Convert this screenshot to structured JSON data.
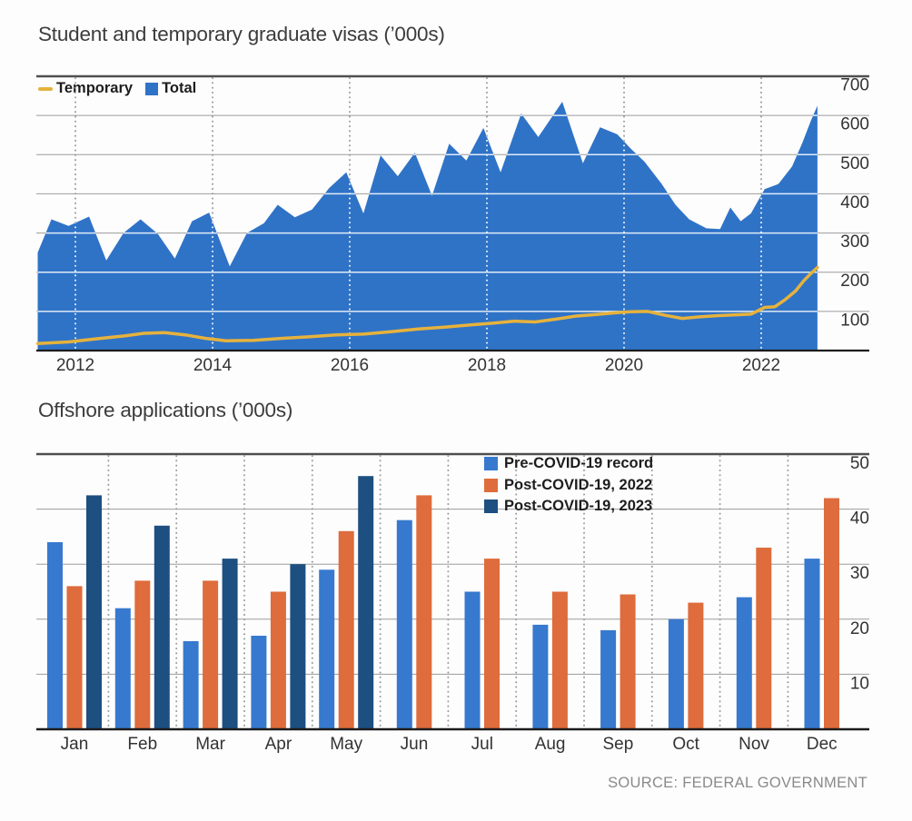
{
  "source_label": "SOURCE: FEDERAL GOVERNMENT",
  "colors": {
    "grid_gray": "#9b9b9b",
    "chart_top_border": "#4f4f4f",
    "axis_dark": "#1c1c1c",
    "tick_label": "#333333",
    "white_grid": "#ffffff"
  },
  "chart_data": [
    {
      "type": "area",
      "title": "Student and temporary graduate visas (’000s)",
      "xlabel": "",
      "ylabel": "",
      "xlim": [
        2011.45,
        2022.82
      ],
      "ylim": [
        0,
        700
      ],
      "x_ticks": [
        2012,
        2014,
        2016,
        2018,
        2020,
        2022
      ],
      "y_ticks": [
        700,
        600,
        500,
        400,
        300,
        200,
        100
      ],
      "grid": "horizontal solid, vertical dotted at year ticks; gridlines render white over the filled area",
      "legend_position": "top-left inside plot",
      "legend": [
        {
          "label": "Temporary",
          "color": "#e6b23c",
          "marker": "line"
        },
        {
          "label": "Total",
          "color": "#2f73c7",
          "marker": "square"
        }
      ],
      "series": [
        {
          "name": "Total",
          "style": "area",
          "color": "#2f73c7",
          "points": [
            [
              2011.45,
              250
            ],
            [
              2011.65,
              335
            ],
            [
              2011.9,
              318
            ],
            [
              2012.2,
              342
            ],
            [
              2012.45,
              230
            ],
            [
              2012.7,
              300
            ],
            [
              2012.95,
              335
            ],
            [
              2013.2,
              298
            ],
            [
              2013.45,
              235
            ],
            [
              2013.7,
              330
            ],
            [
              2013.95,
              352
            ],
            [
              2014.25,
              215
            ],
            [
              2014.5,
              300
            ],
            [
              2014.75,
              325
            ],
            [
              2014.95,
              372
            ],
            [
              2015.2,
              340
            ],
            [
              2015.45,
              360
            ],
            [
              2015.7,
              415
            ],
            [
              2015.95,
              455
            ],
            [
              2016.2,
              350
            ],
            [
              2016.45,
              498
            ],
            [
              2016.7,
              445
            ],
            [
              2016.95,
              505
            ],
            [
              2017.2,
              395
            ],
            [
              2017.45,
              528
            ],
            [
              2017.7,
              485
            ],
            [
              2017.95,
              568
            ],
            [
              2018.2,
              455
            ],
            [
              2018.5,
              605
            ],
            [
              2018.75,
              545
            ],
            [
              2019.1,
              635
            ],
            [
              2019.4,
              478
            ],
            [
              2019.65,
              570
            ],
            [
              2019.9,
              552
            ],
            [
              2020.1,
              515
            ],
            [
              2020.3,
              482
            ],
            [
              2020.55,
              425
            ],
            [
              2020.75,
              372
            ],
            [
              2020.95,
              335
            ],
            [
              2021.2,
              312
            ],
            [
              2021.4,
              310
            ],
            [
              2021.55,
              365
            ],
            [
              2021.7,
              330
            ],
            [
              2021.85,
              350
            ],
            [
              2022.05,
              412
            ],
            [
              2022.25,
              425
            ],
            [
              2022.45,
              470
            ],
            [
              2022.6,
              530
            ],
            [
              2022.72,
              585
            ],
            [
              2022.82,
              625
            ]
          ]
        },
        {
          "name": "Temporary",
          "style": "line",
          "color": "#e6b23c",
          "points": [
            [
              2011.45,
              18
            ],
            [
              2011.9,
              22
            ],
            [
              2012.3,
              30
            ],
            [
              2012.7,
              37
            ],
            [
              2013.0,
              44
            ],
            [
              2013.3,
              46
            ],
            [
              2013.6,
              40
            ],
            [
              2013.9,
              31
            ],
            [
              2014.2,
              25
            ],
            [
              2014.6,
              26
            ],
            [
              2015.0,
              31
            ],
            [
              2015.4,
              35
            ],
            [
              2015.8,
              40
            ],
            [
              2016.2,
              42
            ],
            [
              2016.6,
              48
            ],
            [
              2017.0,
              55
            ],
            [
              2017.4,
              60
            ],
            [
              2017.8,
              66
            ],
            [
              2018.1,
              70
            ],
            [
              2018.4,
              75
            ],
            [
              2018.7,
              73
            ],
            [
              2019.0,
              80
            ],
            [
              2019.3,
              88
            ],
            [
              2019.6,
              92
            ],
            [
              2019.9,
              97
            ],
            [
              2020.1,
              99
            ],
            [
              2020.35,
              100
            ],
            [
              2020.6,
              90
            ],
            [
              2020.85,
              82
            ],
            [
              2021.1,
              86
            ],
            [
              2021.35,
              89
            ],
            [
              2021.6,
              91
            ],
            [
              2021.85,
              93
            ],
            [
              2022.05,
              110
            ],
            [
              2022.2,
              112
            ],
            [
              2022.35,
              130
            ],
            [
              2022.5,
              152
            ],
            [
              2022.62,
              178
            ],
            [
              2022.72,
              196
            ],
            [
              2022.82,
              212
            ]
          ]
        }
      ]
    },
    {
      "type": "bar",
      "title": "Offshore applications (’000s)",
      "xlabel": "",
      "ylabel": "",
      "ylim": [
        0,
        50
      ],
      "y_ticks": [
        50,
        40,
        30,
        20,
        10
      ],
      "grid": "horizontal solid gray; dotted vertical separators between month groups",
      "legend_position": "top-center-right inside plot",
      "categories": [
        "Jan",
        "Feb",
        "Mar",
        "Apr",
        "May",
        "Jun",
        "Jul",
        "Aug",
        "Sep",
        "Oct",
        "Nov",
        "Dec"
      ],
      "series": [
        {
          "name": "Pre-COVID-19 record",
          "color": "#3779ce",
          "values": [
            34,
            22,
            16,
            17,
            29,
            38,
            25,
            19,
            18,
            20,
            24,
            31
          ]
        },
        {
          "name": "Post-COVID-19, 2022",
          "color": "#de6c3c",
          "values": [
            26,
            27,
            27,
            25,
            36,
            42.5,
            31,
            25,
            24.5,
            23,
            33,
            42
          ]
        },
        {
          "name": "Post-COVID-19, 2023",
          "color": "#1d4f80",
          "values": [
            42.5,
            37,
            31,
            30,
            46,
            null,
            null,
            null,
            null,
            null,
            null,
            null
          ]
        }
      ]
    }
  ]
}
